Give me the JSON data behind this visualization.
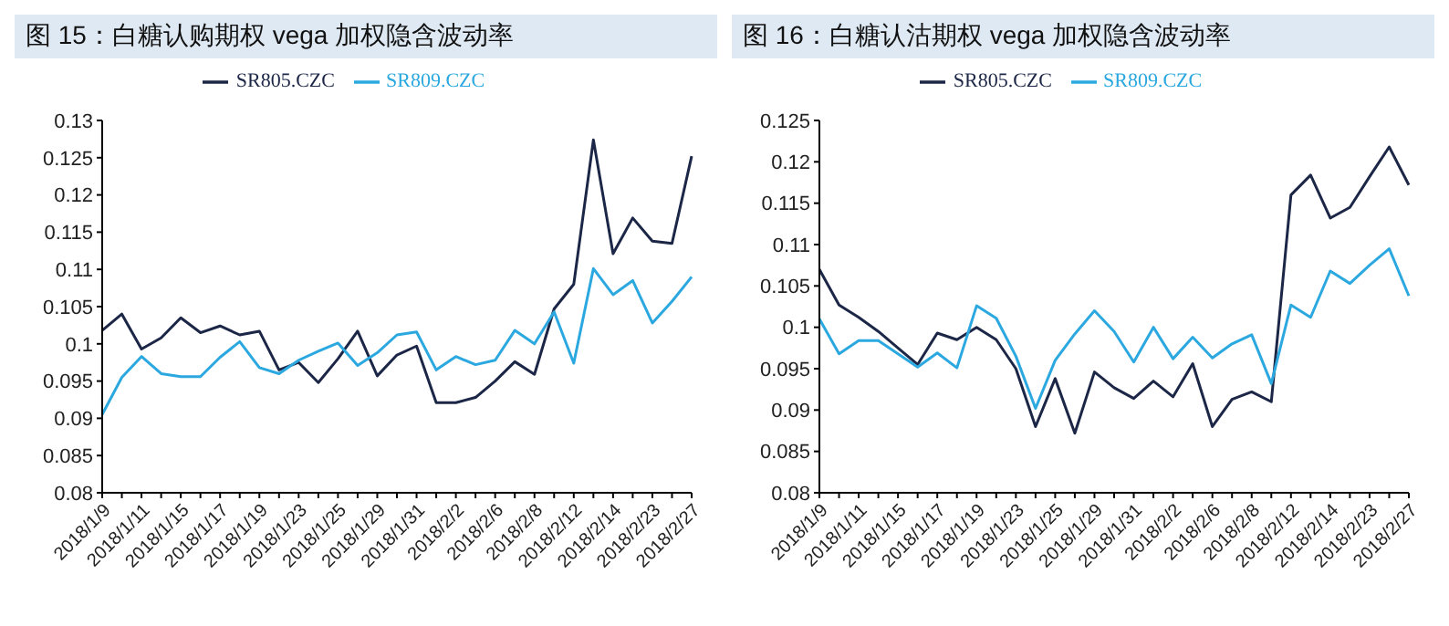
{
  "chart_data": [
    {
      "type": "line",
      "title": "图 15：白糖认购期权 vega 加权隐含波动率",
      "categories": [
        "2018/1/9",
        null,
        "2018/1/11",
        null,
        "2018/1/15",
        null,
        "2018/1/17",
        null,
        "2018/1/19",
        null,
        "2018/1/23",
        null,
        "2018/1/25",
        null,
        "2018/1/29",
        null,
        "2018/1/31",
        null,
        "2018/2/2",
        null,
        "2018/2/6",
        null,
        "2018/2/8",
        null,
        "2018/2/12",
        null,
        "2018/2/14",
        null,
        "2018/2/23",
        null,
        "2018/2/27"
      ],
      "series": [
        {
          "name": "SR805.CZC",
          "color": "#1c2747",
          "values": [
            0.1018,
            0.104,
            0.0993,
            0.1008,
            0.1035,
            0.1015,
            0.1024,
            0.1012,
            0.1017,
            0.0965,
            0.0975,
            0.0948,
            0.098,
            0.1017,
            0.0957,
            0.0985,
            0.0997,
            0.0921,
            0.0921,
            0.0928,
            0.095,
            0.0976,
            0.0959,
            0.1047,
            0.108,
            0.1274,
            0.1121,
            0.1169,
            0.1138,
            0.1135,
            0.1252
          ]
        },
        {
          "name": "SR809.CZC",
          "color": "#2ba8df",
          "values": [
            0.0905,
            0.0955,
            0.0983,
            0.096,
            0.0956,
            0.0956,
            0.0982,
            0.1003,
            0.0968,
            0.096,
            0.0978,
            0.099,
            0.1001,
            0.0971,
            0.0988,
            0.1012,
            0.1016,
            0.0965,
            0.0983,
            0.0972,
            0.0978,
            0.1018,
            0.1,
            0.1043,
            0.0974,
            0.1101,
            0.1066,
            0.1085,
            0.1028,
            0.1057,
            0.109
          ]
        }
      ],
      "ylim": [
        0.08,
        0.13
      ],
      "yticks": [
        0.08,
        0.085,
        0.09,
        0.095,
        0.1,
        0.105,
        0.11,
        0.115,
        0.12,
        0.125,
        0.13
      ],
      "grid": false,
      "legend": "top",
      "marker": "none",
      "line_style": "solid"
    },
    {
      "type": "line",
      "title": "图 16：白糖认沽期权 vega 加权隐含波动率",
      "categories": [
        "2018/1/9",
        null,
        "2018/1/11",
        null,
        "2018/1/15",
        null,
        "2018/1/17",
        null,
        "2018/1/19",
        null,
        "2018/1/23",
        null,
        "2018/1/25",
        null,
        "2018/1/29",
        null,
        "2018/1/31",
        null,
        "2018/2/2",
        null,
        "2018/2/6",
        null,
        "2018/2/8",
        null,
        "2018/2/12",
        null,
        "2018/2/14",
        null,
        "2018/2/23",
        null,
        "2018/2/27"
      ],
      "series": [
        {
          "name": "SR805.CZC",
          "color": "#1c2747",
          "values": [
            0.107,
            0.1027,
            0.1012,
            0.0995,
            0.0975,
            0.0955,
            0.0993,
            0.0985,
            0.1,
            0.0985,
            0.095,
            0.088,
            0.0938,
            0.0872,
            0.0946,
            0.0927,
            0.0914,
            0.0935,
            0.0916,
            0.0956,
            0.088,
            0.0913,
            0.0922,
            0.091,
            0.116,
            0.1184,
            0.1132,
            0.1145,
            0.1182,
            0.1218,
            0.1172
          ]
        },
        {
          "name": "SR809.CZC",
          "color": "#2ba8df",
          "values": [
            0.101,
            0.0968,
            0.0984,
            0.0984,
            0.0968,
            0.0952,
            0.0969,
            0.0951,
            0.1026,
            0.1011,
            0.0965,
            0.0902,
            0.096,
            0.0992,
            0.102,
            0.0995,
            0.0958,
            0.1,
            0.0962,
            0.0988,
            0.0963,
            0.098,
            0.0991,
            0.0932,
            0.1027,
            0.1012,
            0.1068,
            0.1053,
            0.1075,
            0.1095,
            0.1038
          ]
        }
      ],
      "ylim": [
        0.08,
        0.125
      ],
      "yticks": [
        0.08,
        0.085,
        0.09,
        0.095,
        0.1,
        0.105,
        0.11,
        0.115,
        0.12,
        0.125
      ],
      "grid": false,
      "legend": "top",
      "marker": "none",
      "line_style": "solid"
    }
  ]
}
